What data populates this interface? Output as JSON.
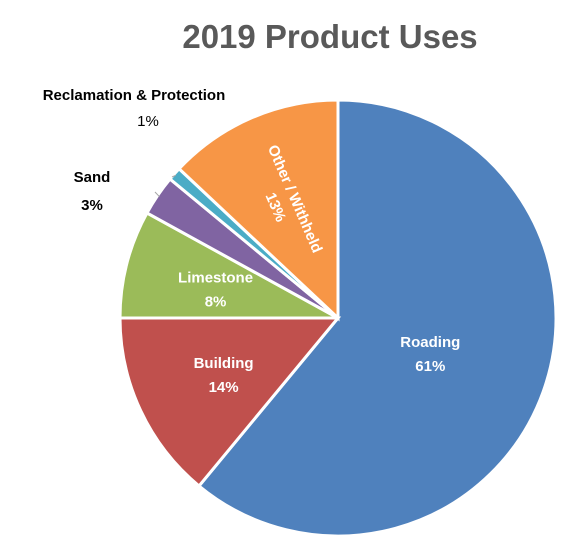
{
  "chart_data": {
    "type": "pie",
    "title": "2019 Product Uses",
    "slices": [
      {
        "label": "Roading",
        "value": 61,
        "pct_label": "61%",
        "color": "#4f81bd"
      },
      {
        "label": "Building",
        "value": 14,
        "pct_label": "14%",
        "color": "#c0504d"
      },
      {
        "label": "Limestone",
        "value": 8,
        "pct_label": "8%",
        "color": "#9bbb59"
      },
      {
        "label": "Sand",
        "value": 3,
        "pct_label": "3%",
        "color": "#8064a2"
      },
      {
        "label": "Reclamation & Protection",
        "value": 1,
        "pct_label": "1%",
        "color": "#4bacc6"
      },
      {
        "label": "Other / Withheld",
        "value": 13,
        "pct_label": "13%",
        "color": "#f79646"
      }
    ],
    "start_angle_deg": 0,
    "direction": "clockwise",
    "legend": "none",
    "data_labels": "category and percentage"
  }
}
